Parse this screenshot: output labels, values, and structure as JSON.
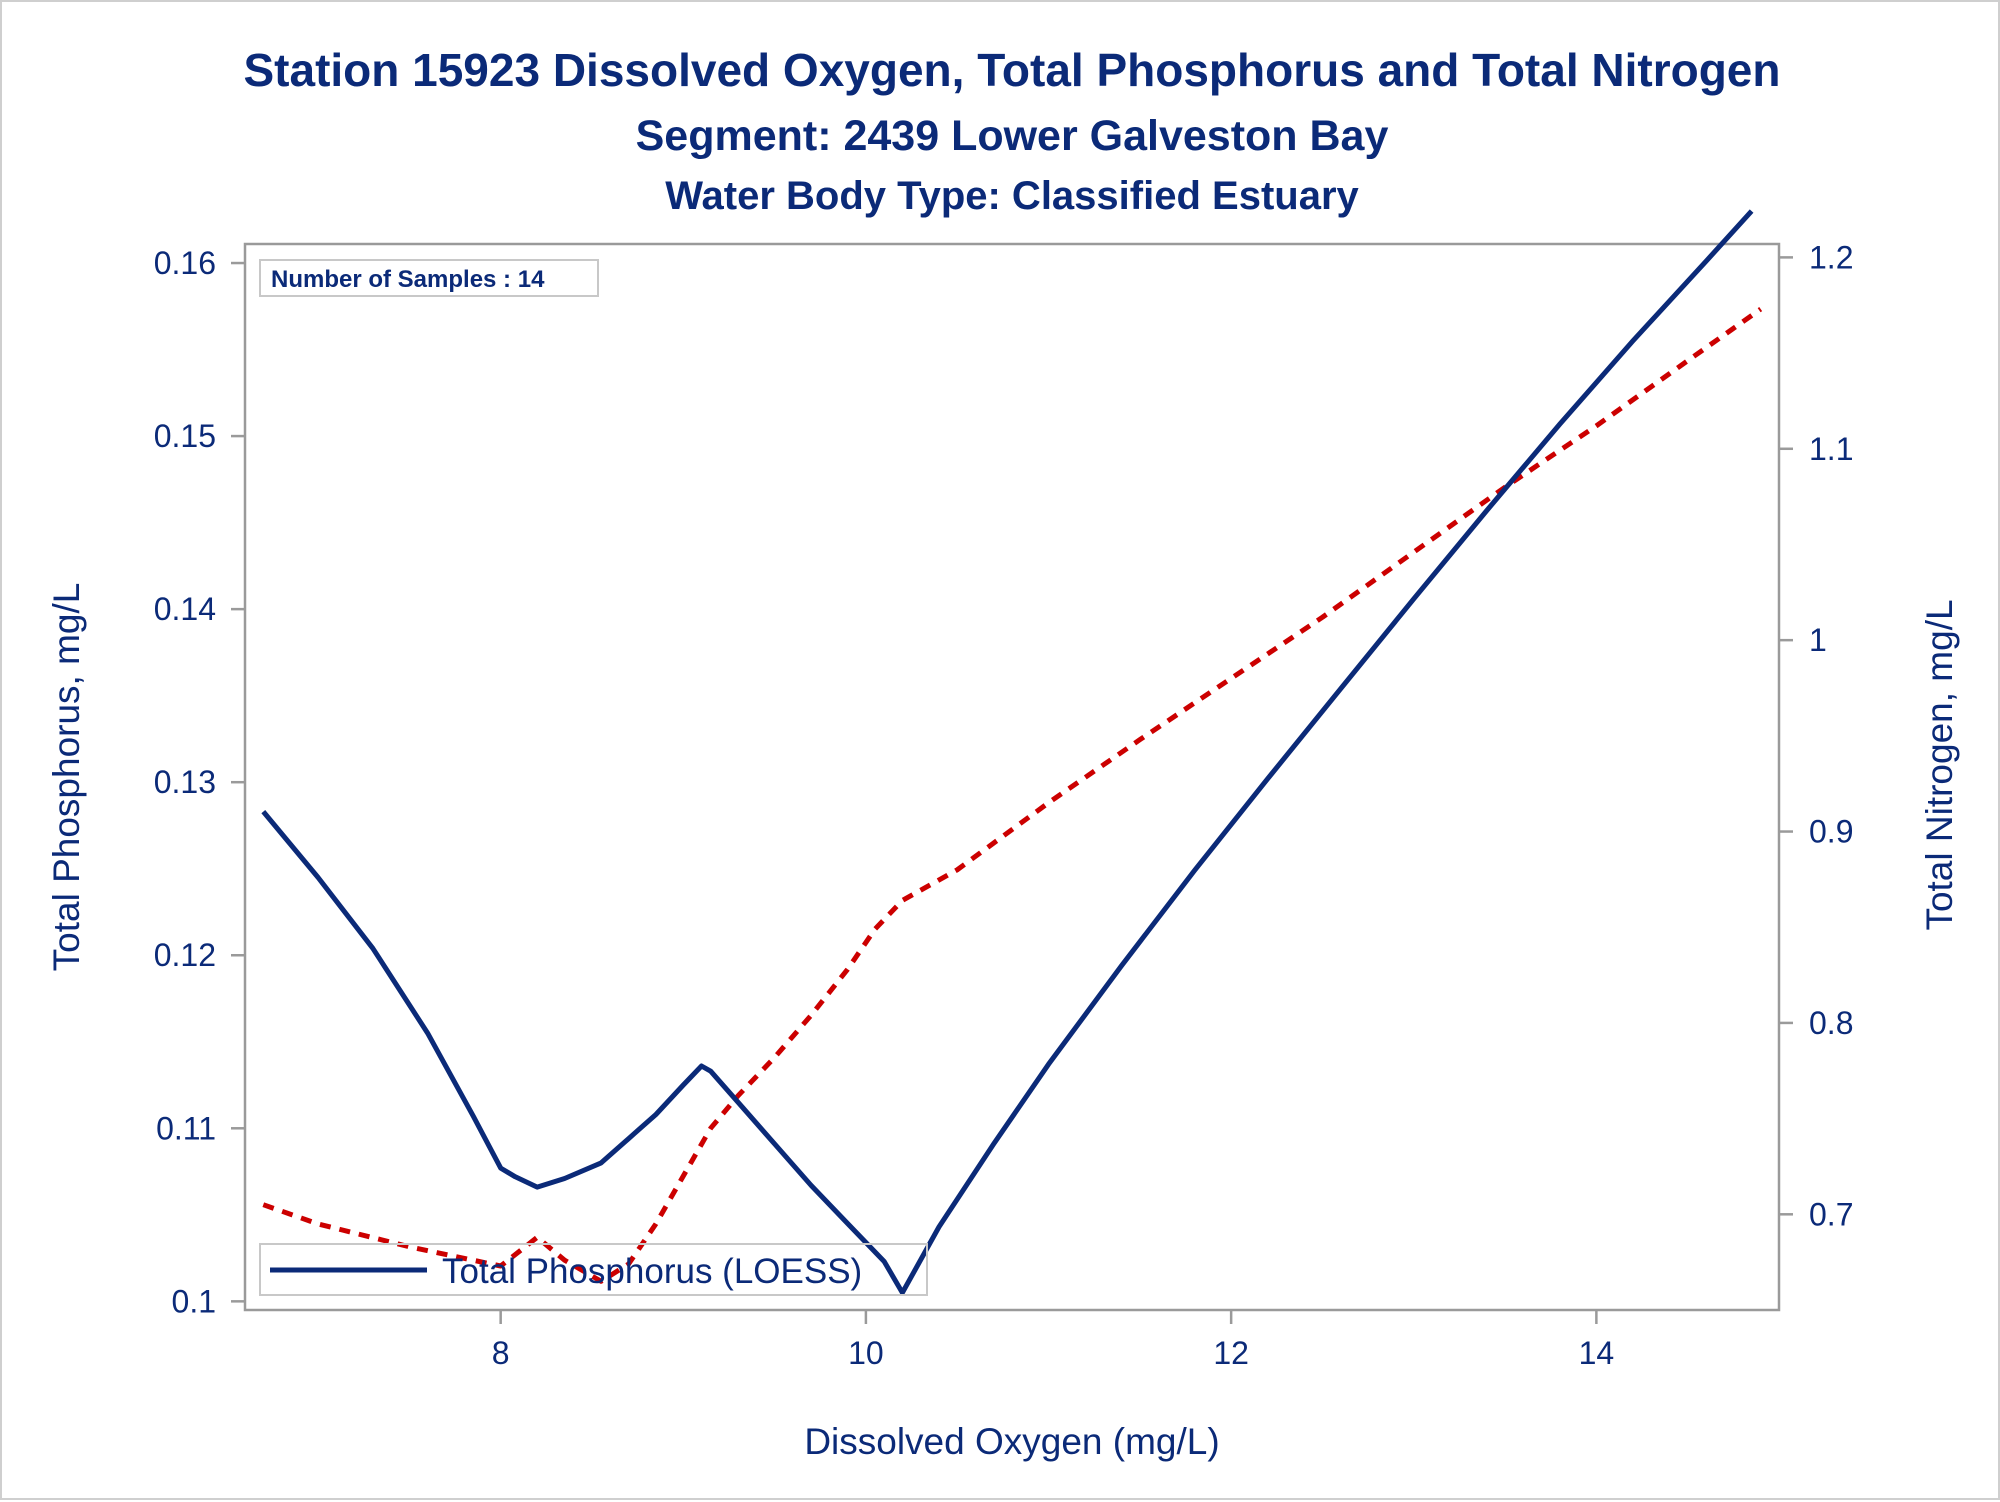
{
  "title": "Station 15923  Dissolved Oxygen, Total Phosphorus and Total Nitrogen",
  "subtitle": "Segment: 2439  Lower Galveston Bay",
  "subtitle2": "Water Body Type: Classified Estuary",
  "inset_text": "Number of Samples : 14",
  "legend_label": "Total Phosphorus (LOESS)",
  "colors": {
    "text": "#0b2a78",
    "phosphorus_line": "#0b2a78",
    "nitrogen_line": "#cc0000",
    "axis": "#9a9a9a"
  },
  "chart_data": {
    "type": "line",
    "title": "Station 15923  Dissolved Oxygen, Total Phosphorus and Total Nitrogen",
    "xlabel": "Dissolved Oxygen (mg/L)",
    "ylabel": "Total Phosphorus, mg/L",
    "y2label": "Total Nitrogen, mg/L",
    "xlim": [
      6.6,
      15.0
    ],
    "ylim": [
      0.0995,
      0.1611
    ],
    "y2lim": [
      0.65,
      1.207
    ],
    "xticks": [
      8,
      10,
      12,
      14
    ],
    "yticks": [
      0.1,
      0.11,
      0.12,
      0.13,
      0.14,
      0.15,
      0.16
    ],
    "yticklabels": [
      "0.1",
      "0.11",
      "0.12",
      "0.13",
      "0.14",
      "0.15",
      "0.16"
    ],
    "y2ticks": [
      0.7,
      0.8,
      0.9,
      1.0,
      1.1,
      1.2
    ],
    "y2ticklabels": [
      "0.7",
      "0.8",
      "0.9",
      "1",
      "1.1",
      "1.2"
    ],
    "grid": false,
    "legend_position": "bottom-left inside",
    "series": [
      {
        "name": "Total Phosphorus (LOESS)",
        "axis": "left",
        "style": "solid",
        "color": "#0b2a78",
        "x": [
          6.7,
          7.0,
          7.3,
          7.6,
          7.85,
          8.0,
          8.08,
          8.2,
          8.35,
          8.55,
          8.7,
          8.85,
          9.0,
          9.1,
          9.15,
          9.3,
          9.5,
          9.7,
          9.9,
          10.1,
          10.2,
          10.4,
          10.7,
          11.0,
          11.4,
          11.8,
          12.2,
          12.6,
          13.0,
          13.4,
          13.8,
          14.2,
          14.6,
          14.85
        ],
        "y": [
          0.1283,
          0.1245,
          0.1204,
          0.1155,
          0.1107,
          0.1077,
          0.1072,
          0.1066,
          0.1071,
          0.108,
          0.1094,
          0.1108,
          0.1125,
          0.1136,
          0.1133,
          0.1115,
          0.1091,
          0.1067,
          0.1045,
          0.1023,
          0.1005,
          0.1043,
          0.1091,
          0.1137,
          0.1194,
          0.1249,
          0.1302,
          0.1354,
          0.1406,
          0.1457,
          0.1507,
          0.1555,
          0.1601,
          0.163
        ]
      },
      {
        "name": "",
        "axis": "right",
        "style": "dashed",
        "color": "#cc0000",
        "x": [
          6.7,
          7.0,
          7.5,
          8.0,
          8.2,
          8.35,
          8.55,
          8.7,
          8.85,
          9.0,
          9.15,
          9.3,
          9.5,
          9.7,
          9.9,
          10.05,
          10.2,
          10.5,
          11.0,
          11.5,
          12.0,
          12.5,
          13.0,
          13.5,
          14.0,
          14.5,
          14.9
        ],
        "y": [
          0.705,
          0.695,
          0.683,
          0.673,
          0.688,
          0.676,
          0.665,
          0.674,
          0.695,
          0.72,
          0.745,
          0.762,
          0.782,
          0.804,
          0.828,
          0.849,
          0.864,
          0.88,
          0.915,
          0.948,
          0.98,
          1.012,
          1.046,
          1.08,
          1.112,
          1.146,
          1.173
        ]
      }
    ]
  }
}
